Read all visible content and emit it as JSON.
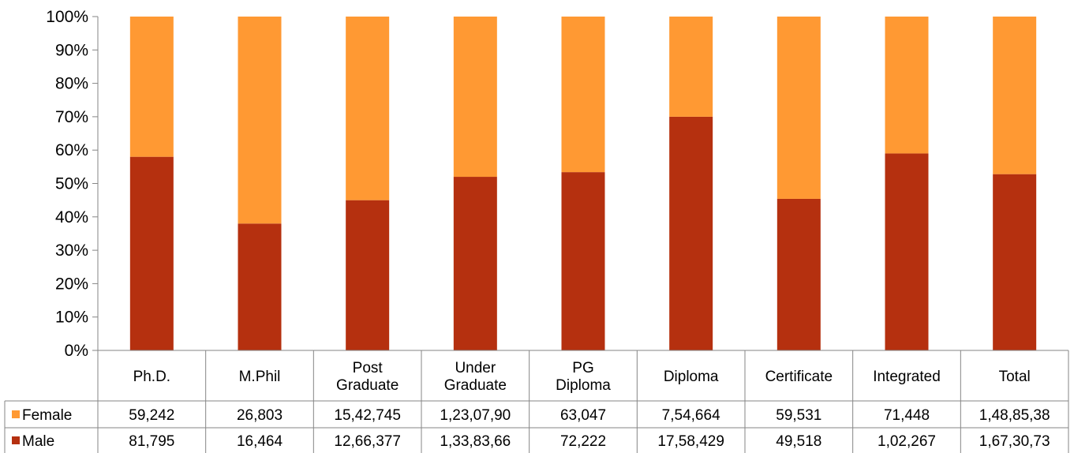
{
  "chart_data": {
    "type": "bar",
    "stacked": true,
    "percent_stacked": true,
    "title": "",
    "xlabel": "",
    "ylabel": "",
    "ylim": [
      0,
      100
    ],
    "y_ticks": [
      "0%",
      "10%",
      "20%",
      "30%",
      "40%",
      "50%",
      "60%",
      "70%",
      "80%",
      "90%",
      "100%"
    ],
    "categories": [
      [
        "Ph.D."
      ],
      [
        "M.Phil"
      ],
      [
        "Post",
        "Graduate"
      ],
      [
        "Under",
        "Graduate"
      ],
      [
        "PG",
        "Diploma"
      ],
      [
        "Diploma"
      ],
      [
        "Certificate"
      ],
      [
        "Integrated"
      ],
      [
        "Total"
      ]
    ],
    "series": [
      {
        "name": "Female",
        "color": "#FF9933",
        "percent": [
          42,
          62,
          55,
          48,
          46.6,
          30,
          54.6,
          41,
          47.2
        ],
        "table_values": [
          "59,242",
          "26,803",
          "15,42,745",
          "1,23,07,90",
          "63,047",
          "7,54,664",
          "59,531",
          "71,448",
          "1,48,85,38"
        ]
      },
      {
        "name": "Male",
        "color": "#B5300F",
        "percent": [
          58,
          38,
          45,
          52,
          53.4,
          70,
          45.4,
          59,
          52.8
        ],
        "table_values": [
          "81,795",
          "16,464",
          "12,66,377",
          "1,33,83,66",
          "72,222",
          "17,58,429",
          "49,518",
          "1,02,267",
          "1,67,30,73"
        ]
      }
    ],
    "legend": "data-table",
    "grid": false
  }
}
